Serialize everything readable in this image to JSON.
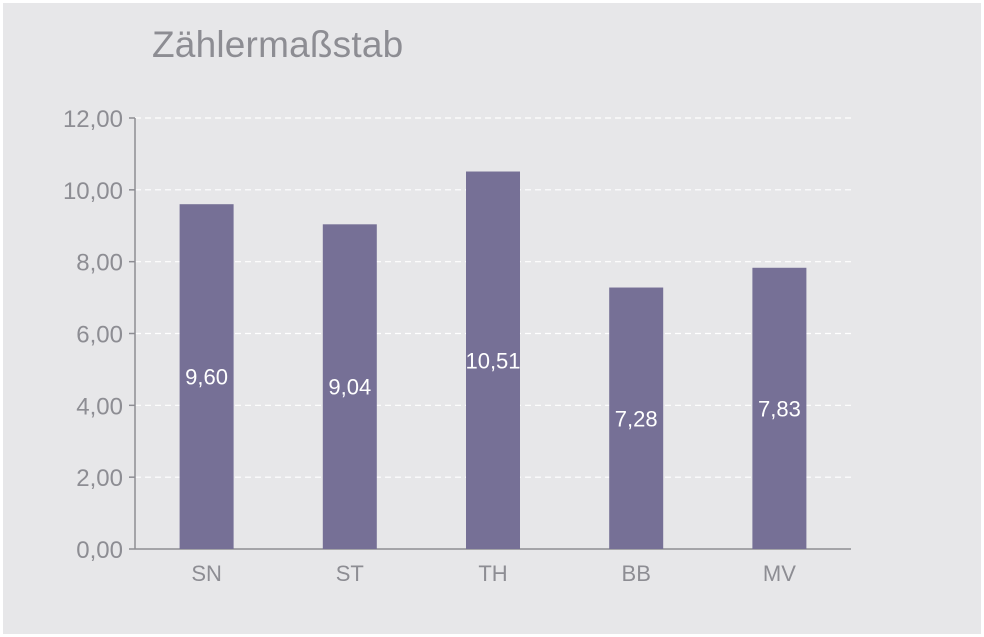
{
  "chart_data": {
    "type": "bar",
    "title": "Zählermaßstab",
    "categories": [
      "SN",
      "ST",
      "TH",
      "BB",
      "MV"
    ],
    "values": [
      9.6,
      9.04,
      10.51,
      7.28,
      7.83
    ],
    "data_labels": [
      "9,60",
      "9,04",
      "10,51",
      "7,28",
      "7,83"
    ],
    "y_ticks": [
      0,
      2,
      4,
      6,
      8,
      10,
      12
    ],
    "y_tick_labels": [
      "0,00",
      "2,00",
      "4,00",
      "6,00",
      "8,00",
      "10,00",
      "12,00"
    ],
    "ylim": [
      0,
      12
    ],
    "xlabel": "",
    "ylabel": "",
    "grid": true,
    "legend": "none",
    "colors": {
      "bar": "#767096",
      "grid": "#ffffff",
      "axis": "#8d8d93",
      "text": "#8d8d93",
      "background": "#e7e7e9"
    }
  }
}
